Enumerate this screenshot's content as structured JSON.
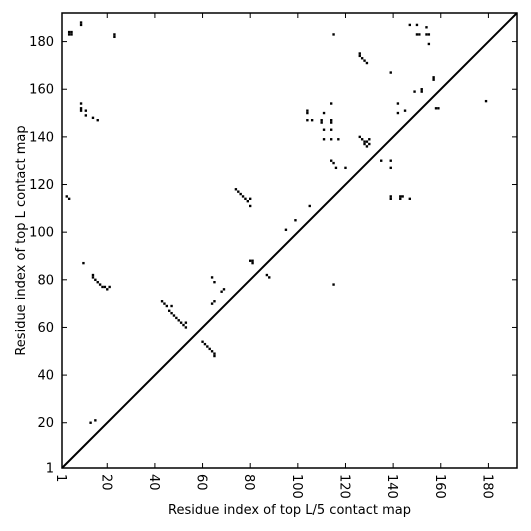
{
  "chart_data": {
    "type": "heatmap",
    "xlabel": "Residue index of top L/5 contact map",
    "ylabel": "Residue index of top L contact map",
    "xlim": [
      1,
      192
    ],
    "ylim": [
      1,
      192
    ],
    "x_ticks": [
      1,
      20,
      40,
      60,
      80,
      100,
      120,
      140,
      160,
      180
    ],
    "y_ticks": [
      1,
      20,
      40,
      60,
      80,
      100,
      120,
      140,
      160,
      180
    ],
    "grid": false,
    "diagonal": true,
    "cell_color": "#000000",
    "cells": [
      [
        4,
        183
      ],
      [
        4,
        184
      ],
      [
        5,
        183
      ],
      [
        5,
        184
      ],
      [
        9,
        187
      ],
      [
        9,
        188
      ],
      [
        23,
        182
      ],
      [
        23,
        183
      ],
      [
        3,
        115
      ],
      [
        4,
        114
      ],
      [
        9,
        151
      ],
      [
        9,
        152
      ],
      [
        9,
        154
      ],
      [
        11,
        149
      ],
      [
        11,
        151
      ],
      [
        14,
        148
      ],
      [
        16,
        147
      ],
      [
        10,
        87
      ],
      [
        14,
        82
      ],
      [
        14,
        81
      ],
      [
        15,
        80
      ],
      [
        16,
        79
      ],
      [
        17,
        78
      ],
      [
        18,
        77
      ],
      [
        19,
        77
      ],
      [
        20,
        76
      ],
      [
        21,
        77
      ],
      [
        13,
        20
      ],
      [
        15,
        21
      ],
      [
        43,
        71
      ],
      [
        44,
        70
      ],
      [
        45,
        69
      ],
      [
        46,
        67
      ],
      [
        47,
        66
      ],
      [
        47,
        69
      ],
      [
        48,
        65
      ],
      [
        49,
        64
      ],
      [
        50,
        63
      ],
      [
        51,
        62
      ],
      [
        52,
        61
      ],
      [
        53,
        60
      ],
      [
        53,
        62
      ],
      [
        60,
        54
      ],
      [
        61,
        53
      ],
      [
        62,
        52
      ],
      [
        63,
        51
      ],
      [
        64,
        50
      ],
      [
        65,
        49
      ],
      [
        65,
        48
      ],
      [
        64,
        81
      ],
      [
        65,
        79
      ],
      [
        64,
        70
      ],
      [
        65,
        71
      ],
      [
        68,
        75
      ],
      [
        69,
        76
      ],
      [
        74,
        118
      ],
      [
        75,
        117
      ],
      [
        76,
        116
      ],
      [
        77,
        115
      ],
      [
        78,
        114
      ],
      [
        79,
        113
      ],
      [
        80,
        114
      ],
      [
        80,
        111
      ],
      [
        80,
        88
      ],
      [
        81,
        88
      ],
      [
        81,
        87
      ],
      [
        87,
        82
      ],
      [
        88,
        81
      ],
      [
        95,
        101
      ],
      [
        99,
        105
      ],
      [
        105,
        111
      ],
      [
        104,
        151
      ],
      [
        104,
        150
      ],
      [
        104,
        147
      ],
      [
        106,
        147
      ],
      [
        110,
        147
      ],
      [
        110,
        146
      ],
      [
        111,
        143
      ],
      [
        111,
        139
      ],
      [
        111,
        150
      ],
      [
        114,
        154
      ],
      [
        114,
        147
      ],
      [
        114,
        146
      ],
      [
        114,
        143
      ],
      [
        114,
        139
      ],
      [
        114,
        130
      ],
      [
        115,
        129
      ],
      [
        116,
        127
      ],
      [
        117,
        139
      ],
      [
        120,
        127
      ],
      [
        115,
        183
      ],
      [
        115,
        78
      ],
      [
        126,
        175
      ],
      [
        126,
        174
      ],
      [
        127,
        173
      ],
      [
        128,
        172
      ],
      [
        129,
        171
      ],
      [
        126,
        140
      ],
      [
        127,
        139
      ],
      [
        128,
        138
      ],
      [
        128,
        137
      ],
      [
        129,
        136
      ],
      [
        129,
        138
      ],
      [
        130,
        137
      ],
      [
        130,
        139
      ],
      [
        135,
        130
      ],
      [
        139,
        130
      ],
      [
        139,
        127
      ],
      [
        139,
        115
      ],
      [
        139,
        114
      ],
      [
        139,
        167
      ],
      [
        142,
        154
      ],
      [
        142,
        150
      ],
      [
        145,
        151
      ],
      [
        143,
        115
      ],
      [
        143,
        114
      ],
      [
        144,
        115
      ],
      [
        147,
        114
      ],
      [
        147,
        187
      ],
      [
        149,
        159
      ],
      [
        150,
        187
      ],
      [
        150,
        183
      ],
      [
        151,
        183
      ],
      [
        152,
        160
      ],
      [
        152,
        159
      ],
      [
        154,
        186
      ],
      [
        154,
        183
      ],
      [
        155,
        183
      ],
      [
        155,
        179
      ],
      [
        157,
        165
      ],
      [
        157,
        164
      ],
      [
        158,
        152
      ],
      [
        159,
        152
      ],
      [
        179,
        155
      ]
    ]
  }
}
